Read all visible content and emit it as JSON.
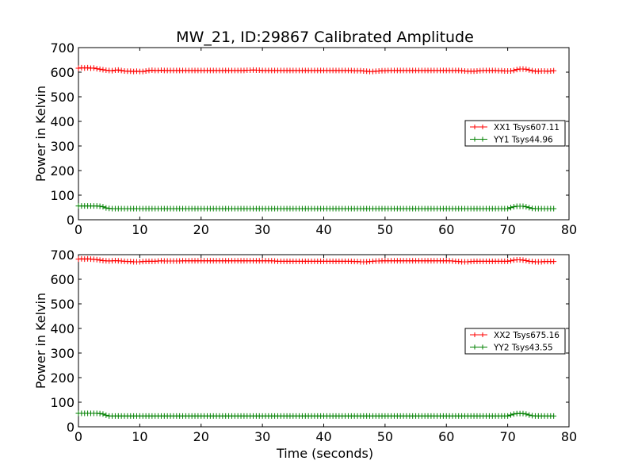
{
  "figure": {
    "title": "MW_21, ID:29867 Calibrated Amplitude",
    "xlabel": "Time (seconds)"
  },
  "chart_data": [
    {
      "type": "line",
      "ylabel": "Power in Kelvin",
      "xlim": [
        0,
        80
      ],
      "ylim": [
        0,
        700
      ],
      "x_ticks": [
        0,
        10,
        20,
        30,
        40,
        50,
        60,
        70,
        80
      ],
      "y_ticks": [
        0,
        100,
        200,
        300,
        400,
        500,
        600,
        700
      ],
      "legend_placement": "center-right",
      "series": [
        {
          "name": "XX1 Tsys607.11",
          "color": "#ff0000",
          "x_start": 0,
          "x_step": 0.5,
          "values": [
            616,
            618,
            617,
            618,
            616,
            617,
            614,
            612,
            610,
            608,
            607,
            606,
            608,
            609,
            607,
            605,
            604,
            604,
            603,
            604,
            603,
            603,
            605,
            607,
            608,
            607,
            607,
            608,
            607,
            607,
            607,
            607,
            607,
            607,
            607,
            607,
            607,
            607,
            607,
            607,
            607,
            607,
            607,
            607,
            607,
            607,
            607,
            607,
            607,
            607,
            607,
            607,
            607,
            607,
            607,
            608,
            608,
            609,
            608,
            608,
            607,
            607,
            607,
            607,
            607,
            607,
            607,
            607,
            607,
            607,
            607,
            607,
            607,
            607,
            607,
            607,
            607,
            607,
            607,
            607,
            607,
            607,
            607,
            607,
            607,
            607,
            607,
            607,
            607,
            607,
            606,
            606,
            606,
            605,
            604,
            603,
            603,
            604,
            605,
            606,
            606,
            607,
            607,
            607,
            607,
            607,
            607,
            607,
            607,
            607,
            607,
            607,
            607,
            607,
            607,
            607,
            607,
            607,
            607,
            607,
            607,
            607,
            607,
            607,
            607,
            606,
            605,
            604,
            604,
            604,
            605,
            606,
            607,
            607,
            607,
            607,
            607,
            606,
            606,
            605,
            605,
            605,
            607,
            611,
            613,
            613,
            612,
            609,
            606,
            604,
            604,
            605,
            605,
            604,
            605,
            606
          ]
        },
        {
          "name": "YY1 Tsys44.96",
          "color": "#008000",
          "x_start": 0,
          "x_step": 0.5,
          "values": [
            56,
            56,
            56,
            56,
            56,
            56,
            56,
            55,
            53,
            48,
            46,
            45,
            45,
            45,
            45,
            45,
            45,
            45,
            45,
            45,
            45,
            45,
            45,
            45,
            45,
            45,
            45,
            45,
            45,
            45,
            45,
            45,
            45,
            45,
            45,
            45,
            45,
            45,
            45,
            45,
            45,
            45,
            45,
            45,
            45,
            45,
            45,
            45,
            45,
            45,
            45,
            45,
            45,
            45,
            45,
            45,
            45,
            45,
            45,
            45,
            45,
            45,
            45,
            45,
            45,
            45,
            45,
            45,
            45,
            45,
            45,
            45,
            45,
            45,
            45,
            45,
            45,
            45,
            45,
            45,
            45,
            45,
            45,
            45,
            45,
            45,
            45,
            45,
            45,
            45,
            45,
            45,
            45,
            45,
            45,
            45,
            45,
            45,
            45,
            45,
            45,
            45,
            45,
            45,
            45,
            45,
            45,
            45,
            45,
            45,
            45,
            45,
            45,
            45,
            45,
            45,
            45,
            45,
            45,
            45,
            45,
            45,
            45,
            45,
            45,
            45,
            45,
            45,
            45,
            45,
            45,
            45,
            45,
            45,
            45,
            45,
            45,
            45,
            45,
            45,
            45,
            49,
            53,
            55,
            55,
            55,
            53,
            49,
            46,
            45,
            45,
            45,
            45,
            45,
            45,
            45
          ]
        }
      ]
    },
    {
      "type": "line",
      "ylabel": "Power in Kelvin",
      "xlim": [
        0,
        80
      ],
      "ylim": [
        0,
        700
      ],
      "x_ticks": [
        0,
        10,
        20,
        30,
        40,
        50,
        60,
        70,
        80
      ],
      "y_ticks": [
        0,
        100,
        200,
        300,
        400,
        500,
        600,
        700
      ],
      "legend_placement": "center-right",
      "series": [
        {
          "name": "XX2 Tsys675.16",
          "color": "#ff0000",
          "x_start": 0,
          "x_step": 0.5,
          "values": [
            682,
            683,
            682,
            683,
            682,
            681,
            680,
            678,
            676,
            675,
            674,
            675,
            676,
            675,
            674,
            673,
            672,
            672,
            671,
            671,
            671,
            672,
            673,
            673,
            673,
            673,
            674,
            675,
            674,
            674,
            674,
            674,
            674,
            674,
            675,
            675,
            675,
            675,
            675,
            675,
            675,
            675,
            675,
            675,
            675,
            675,
            675,
            675,
            675,
            675,
            675,
            675,
            675,
            675,
            675,
            675,
            675,
            675,
            675,
            675,
            675,
            675,
            675,
            675,
            674,
            673,
            673,
            673,
            673,
            673,
            673,
            673,
            673,
            673,
            673,
            673,
            673,
            673,
            673,
            673,
            673,
            673,
            673,
            673,
            673,
            673,
            673,
            673,
            673,
            673,
            672,
            672,
            671,
            671,
            671,
            672,
            673,
            674,
            674,
            675,
            675,
            675,
            675,
            675,
            675,
            675,
            675,
            675,
            675,
            675,
            675,
            675,
            675,
            675,
            675,
            675,
            675,
            675,
            675,
            675,
            675,
            675,
            674,
            673,
            672,
            671,
            671,
            671,
            672,
            673,
            673,
            673,
            673,
            673,
            673,
            673,
            673,
            673,
            673,
            673,
            673,
            675,
            678,
            679,
            679,
            678,
            676,
            673,
            672,
            671,
            671,
            671,
            672,
            672,
            672,
            672
          ]
        },
        {
          "name": "YY2 Tsys43.55",
          "color": "#008000",
          "x_start": 0,
          "x_step": 0.5,
          "values": [
            55,
            55,
            55,
            55,
            55,
            55,
            55,
            54,
            52,
            47,
            44,
            44,
            44,
            44,
            44,
            44,
            44,
            44,
            44,
            44,
            44,
            44,
            44,
            44,
            44,
            44,
            44,
            44,
            44,
            44,
            44,
            44,
            44,
            44,
            44,
            44,
            44,
            44,
            44,
            44,
            44,
            44,
            44,
            44,
            44,
            44,
            44,
            44,
            44,
            44,
            44,
            44,
            44,
            44,
            44,
            44,
            44,
            44,
            44,
            44,
            44,
            44,
            44,
            44,
            44,
            44,
            44,
            44,
            44,
            44,
            44,
            44,
            44,
            44,
            44,
            44,
            44,
            44,
            44,
            44,
            44,
            44,
            44,
            44,
            44,
            44,
            44,
            44,
            44,
            44,
            44,
            44,
            44,
            44,
            44,
            44,
            44,
            44,
            44,
            44,
            44,
            44,
            44,
            44,
            44,
            44,
            44,
            44,
            44,
            44,
            44,
            44,
            44,
            44,
            44,
            44,
            44,
            44,
            44,
            44,
            44,
            44,
            44,
            44,
            44,
            44,
            44,
            44,
            44,
            44,
            44,
            44,
            44,
            44,
            44,
            44,
            44,
            44,
            44,
            44,
            44,
            48,
            52,
            54,
            54,
            54,
            52,
            48,
            45,
            44,
            44,
            44,
            44,
            44,
            44,
            44
          ]
        }
      ]
    }
  ]
}
